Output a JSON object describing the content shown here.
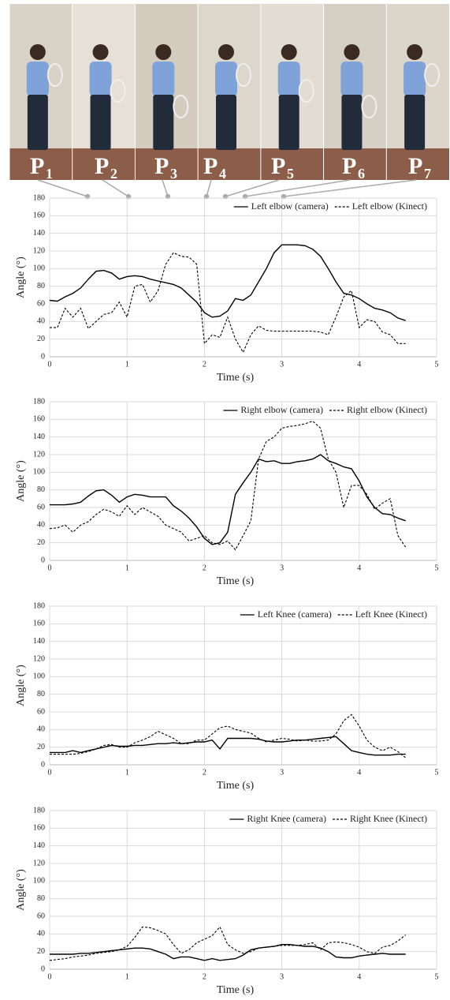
{
  "photo_labels": [
    {
      "main": "P",
      "sub": "1"
    },
    {
      "main": "P",
      "sub": "2"
    },
    {
      "main": "P",
      "sub": "3"
    },
    {
      "main": "P",
      "sub": "4"
    },
    {
      "main": "P",
      "sub": "5"
    },
    {
      "main": "P",
      "sub": "6"
    },
    {
      "main": "P",
      "sub": "7"
    }
  ],
  "chart_data": [
    {
      "type": "line",
      "xlabel": "Time (s)",
      "ylabel": "Angle (°)",
      "xlim": [
        0,
        5
      ],
      "ylim": [
        0,
        180
      ],
      "xticks": [
        0,
        1,
        2,
        3,
        4,
        5
      ],
      "yticks": [
        0,
        20,
        40,
        60,
        80,
        100,
        120,
        140,
        160,
        180
      ],
      "grid": true,
      "legend": "top-right",
      "x": [
        0,
        0.1,
        0.2,
        0.3,
        0.4,
        0.5,
        0.6,
        0.7,
        0.8,
        0.9,
        1,
        1.1,
        1.2,
        1.3,
        1.4,
        1.5,
        1.6,
        1.7,
        1.8,
        1.9,
        2,
        2.1,
        2.2,
        2.3,
        2.4,
        2.5,
        2.6,
        2.7,
        2.8,
        2.9,
        3,
        3.1,
        3.2,
        3.3,
        3.4,
        3.5,
        3.6,
        3.7,
        3.8,
        3.9,
        4,
        4.1,
        4.2,
        4.3,
        4.4,
        4.5,
        4.6
      ],
      "series": [
        {
          "name": "Left elbow (camera)",
          "color": "#000000",
          "dash": "solid",
          "values": [
            64,
            63,
            68,
            72,
            78,
            88,
            97,
            98,
            95,
            88,
            91,
            92,
            91,
            88,
            86,
            84,
            82,
            78,
            70,
            62,
            50,
            45,
            46,
            52,
            66,
            64,
            70,
            85,
            100,
            118,
            127,
            127,
            127,
            126,
            122,
            114,
            100,
            85,
            72,
            70,
            66,
            60,
            55,
            53,
            50,
            44,
            41
          ]
        },
        {
          "name": "Left elbow (Kinect)",
          "color": "#000000",
          "dash": "dashed",
          "values": [
            33,
            33,
            55,
            45,
            55,
            32,
            40,
            48,
            50,
            62,
            45,
            80,
            82,
            62,
            75,
            105,
            118,
            114,
            113,
            105,
            15,
            25,
            22,
            45,
            20,
            5,
            25,
            35,
            30,
            29,
            29,
            29,
            29,
            29,
            29,
            28,
            25,
            45,
            68,
            75,
            33,
            42,
            40,
            28,
            25,
            15,
            15
          ]
        }
      ]
    },
    {
      "type": "line",
      "xlabel": "Time (s)",
      "ylabel": "Angle (°)",
      "xlim": [
        0,
        5
      ],
      "ylim": [
        0,
        180
      ],
      "xticks": [
        0,
        1,
        2,
        3,
        4,
        5
      ],
      "yticks": [
        0,
        20,
        40,
        60,
        80,
        100,
        120,
        140,
        160,
        180
      ],
      "grid": true,
      "legend": "top-right",
      "x": [
        0,
        0.1,
        0.2,
        0.3,
        0.4,
        0.5,
        0.6,
        0.7,
        0.8,
        0.9,
        1,
        1.1,
        1.2,
        1.3,
        1.4,
        1.5,
        1.6,
        1.7,
        1.8,
        1.9,
        2,
        2.1,
        2.2,
        2.3,
        2.4,
        2.5,
        2.6,
        2.7,
        2.8,
        2.9,
        3,
        3.1,
        3.2,
        3.3,
        3.4,
        3.5,
        3.6,
        3.7,
        3.8,
        3.9,
        4,
        4.1,
        4.2,
        4.3,
        4.4,
        4.5,
        4.6
      ],
      "series": [
        {
          "name": "Right elbow (camera)",
          "color": "#000000",
          "dash": "solid",
          "values": [
            63,
            63,
            63,
            64,
            66,
            73,
            79,
            80,
            74,
            66,
            72,
            75,
            74,
            72,
            72,
            72,
            62,
            56,
            48,
            38,
            25,
            18,
            20,
            32,
            75,
            88,
            100,
            115,
            112,
            113,
            110,
            110,
            112,
            113,
            115,
            120,
            113,
            110,
            106,
            104,
            90,
            72,
            60,
            53,
            52,
            48,
            45
          ]
        },
        {
          "name": "Right elbow (Kinect)",
          "color": "#000000",
          "dash": "dashed",
          "values": [
            36,
            37,
            40,
            32,
            40,
            44,
            52,
            58,
            55,
            50,
            62,
            52,
            60,
            55,
            50,
            40,
            36,
            32,
            22,
            25,
            28,
            20,
            18,
            22,
            12,
            28,
            45,
            115,
            135,
            140,
            150,
            152,
            153,
            155,
            158,
            150,
            115,
            100,
            60,
            85,
            85,
            75,
            58,
            65,
            70,
            28,
            15
          ]
        }
      ]
    },
    {
      "type": "line",
      "xlabel": "Time (s)",
      "ylabel": "Angle (°)",
      "xlim": [
        0,
        5
      ],
      "ylim": [
        0,
        180
      ],
      "xticks": [
        0,
        1,
        2,
        3,
        4,
        5
      ],
      "yticks": [
        0,
        20,
        40,
        60,
        80,
        100,
        120,
        140,
        160,
        180
      ],
      "grid": true,
      "legend": "top-right",
      "x": [
        0,
        0.1,
        0.2,
        0.3,
        0.4,
        0.5,
        0.6,
        0.7,
        0.8,
        0.9,
        1,
        1.1,
        1.2,
        1.3,
        1.4,
        1.5,
        1.6,
        1.7,
        1.8,
        1.9,
        2,
        2.1,
        2.2,
        2.3,
        2.4,
        2.5,
        2.6,
        2.7,
        2.8,
        2.9,
        3,
        3.1,
        3.2,
        3.3,
        3.4,
        3.5,
        3.6,
        3.7,
        3.8,
        3.9,
        4,
        4.1,
        4.2,
        4.3,
        4.4,
        4.5,
        4.6
      ],
      "series": [
        {
          "name": "Left Knee (camera)",
          "color": "#000000",
          "dash": "solid",
          "values": [
            14,
            14,
            14,
            16,
            14,
            16,
            18,
            20,
            22,
            21,
            21,
            22,
            22,
            23,
            24,
            24,
            25,
            24,
            25,
            26,
            26,
            28,
            18,
            30,
            30,
            30,
            30,
            29,
            27,
            26,
            26,
            27,
            28,
            28,
            29,
            30,
            31,
            32,
            24,
            16,
            14,
            12,
            11,
            11,
            11,
            12,
            12
          ]
        },
        {
          "name": "Left Knee (Kinect)",
          "color": "#000000",
          "dash": "dashed",
          "values": [
            12,
            12,
            12,
            12,
            13,
            15,
            18,
            22,
            23,
            20,
            20,
            25,
            28,
            32,
            38,
            34,
            30,
            24,
            24,
            28,
            28,
            35,
            42,
            44,
            40,
            38,
            36,
            30,
            26,
            28,
            30,
            29,
            27,
            28,
            27,
            27,
            28,
            35,
            50,
            57,
            44,
            28,
            20,
            16,
            20,
            15,
            8
          ]
        }
      ]
    },
    {
      "type": "line",
      "xlabel": "Time (s)",
      "ylabel": "Angle (°)",
      "xlim": [
        0,
        5
      ],
      "ylim": [
        0,
        180
      ],
      "xticks": [
        0,
        1,
        2,
        3,
        4,
        5
      ],
      "yticks": [
        0,
        20,
        40,
        60,
        80,
        100,
        120,
        140,
        160,
        180
      ],
      "grid": true,
      "legend": "top-right",
      "x": [
        0,
        0.1,
        0.2,
        0.3,
        0.4,
        0.5,
        0.6,
        0.7,
        0.8,
        0.9,
        1,
        1.1,
        1.2,
        1.3,
        1.4,
        1.5,
        1.6,
        1.7,
        1.8,
        1.9,
        2,
        2.1,
        2.2,
        2.3,
        2.4,
        2.5,
        2.6,
        2.7,
        2.8,
        2.9,
        3,
        3.1,
        3.2,
        3.3,
        3.4,
        3.5,
        3.6,
        3.7,
        3.8,
        3.9,
        4,
        4.1,
        4.2,
        4.3,
        4.4,
        4.5,
        4.6
      ],
      "series": [
        {
          "name": "Right Knee (camera)",
          "color": "#000000",
          "dash": "solid",
          "values": [
            17,
            17,
            17,
            17,
            18,
            18,
            19,
            20,
            21,
            22,
            23,
            24,
            24,
            23,
            20,
            17,
            12,
            14,
            14,
            12,
            10,
            12,
            10,
            11,
            12,
            16,
            22,
            24,
            25,
            26,
            28,
            28,
            27,
            26,
            26,
            24,
            20,
            14,
            13,
            13,
            15,
            16,
            17,
            18,
            17,
            17,
            17
          ]
        },
        {
          "name": "Right Knee (Kinect)",
          "color": "#000000",
          "dash": "dashed",
          "values": [
            10,
            11,
            12,
            14,
            15,
            16,
            18,
            19,
            20,
            22,
            26,
            36,
            48,
            47,
            44,
            40,
            28,
            18,
            22,
            30,
            34,
            38,
            48,
            28,
            22,
            18,
            20,
            24,
            25,
            26,
            27,
            27,
            27,
            28,
            30,
            22,
            30,
            31,
            30,
            28,
            25,
            20,
            18,
            25,
            27,
            32,
            39
          ]
        }
      ]
    }
  ]
}
